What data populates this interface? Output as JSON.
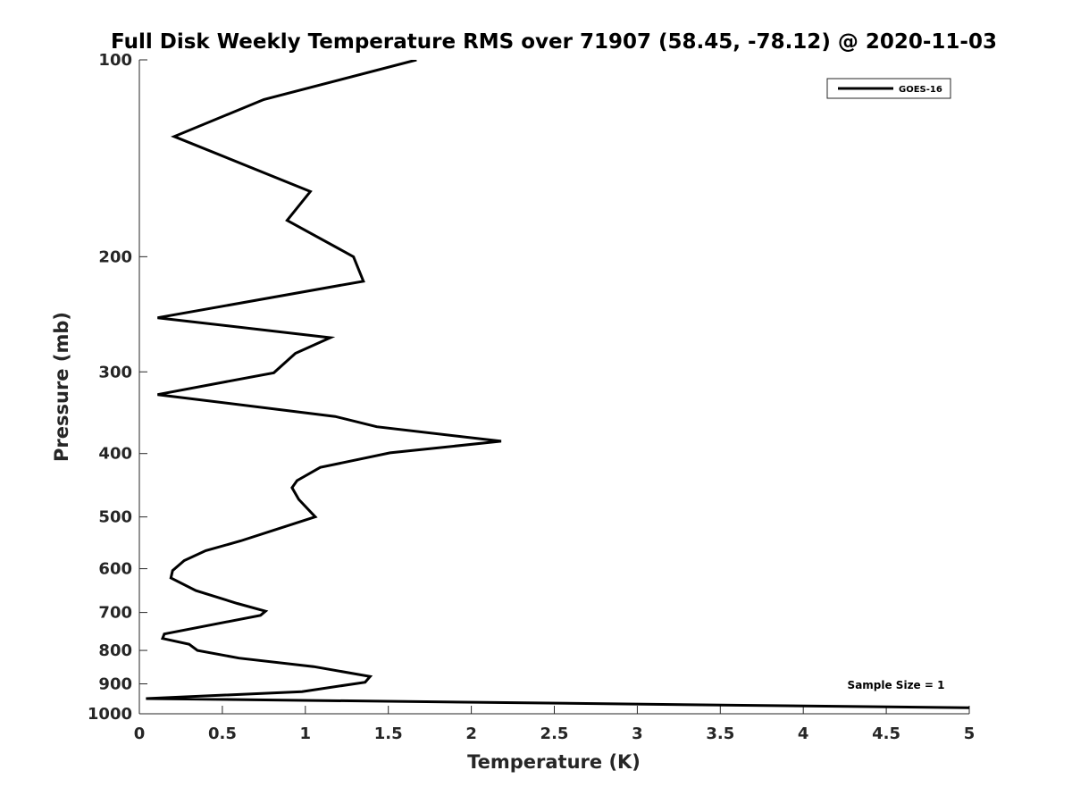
{
  "chart_data": {
    "type": "line",
    "title": "Full Disk Weekly Temperature RMS over 71907 (58.45, -78.12) @ 2020-11-03",
    "xlabel": "Temperature (K)",
    "ylabel": "Pressure (mb)",
    "xlim": [
      0,
      5
    ],
    "ylim": [
      100,
      1000
    ],
    "y_scale": "log",
    "y_reversed": true,
    "x_ticks": [
      "0",
      "0.5",
      "1",
      "1.5",
      "2",
      "2.5",
      "3",
      "3.5",
      "4",
      "4.5",
      "5"
    ],
    "x_tick_values": [
      0,
      0.5,
      1,
      1.5,
      2,
      2.5,
      3,
      3.5,
      4,
      4.5,
      5
    ],
    "y_ticks": [
      "100",
      "200",
      "300",
      "400",
      "500",
      "600",
      "700",
      "800",
      "900",
      "1000"
    ],
    "y_tick_values": [
      100,
      200,
      300,
      400,
      500,
      600,
      700,
      800,
      900,
      1000
    ],
    "grid": false,
    "legend_position": "top-right",
    "series": [
      {
        "name": "GOES-16",
        "color": "#000000",
        "points": [
          [
            1.67,
            100
          ],
          [
            0.75,
            115
          ],
          [
            0.21,
            131
          ],
          [
            1.03,
            159
          ],
          [
            0.89,
            176
          ],
          [
            1.29,
            200
          ],
          [
            1.35,
            218
          ],
          [
            0.11,
            248
          ],
          [
            1.15,
            266
          ],
          [
            0.94,
            281
          ],
          [
            0.81,
            301
          ],
          [
            0.11,
            325
          ],
          [
            1.18,
            351
          ],
          [
            1.43,
            364
          ],
          [
            2.18,
            383
          ],
          [
            1.51,
            399
          ],
          [
            1.09,
            420
          ],
          [
            0.95,
            440
          ],
          [
            0.92,
            451
          ],
          [
            0.96,
            470
          ],
          [
            1.06,
            500
          ],
          [
            0.83,
            522
          ],
          [
            0.61,
            544
          ],
          [
            0.4,
            563
          ],
          [
            0.27,
            583
          ],
          [
            0.2,
            604
          ],
          [
            0.19,
            620
          ],
          [
            0.34,
            648
          ],
          [
            0.59,
            678
          ],
          [
            0.76,
            697
          ],
          [
            0.73,
            707
          ],
          [
            0.15,
            755
          ],
          [
            0.14,
            767
          ],
          [
            0.3,
            783
          ],
          [
            0.35,
            800
          ],
          [
            0.6,
            822
          ],
          [
            1.05,
            847
          ],
          [
            1.39,
            877
          ],
          [
            1.36,
            895
          ],
          [
            0.98,
            925
          ],
          [
            0.04,
            948
          ],
          [
            5.0,
            979
          ]
        ]
      }
    ],
    "annotation": "Sample Size = 1"
  }
}
